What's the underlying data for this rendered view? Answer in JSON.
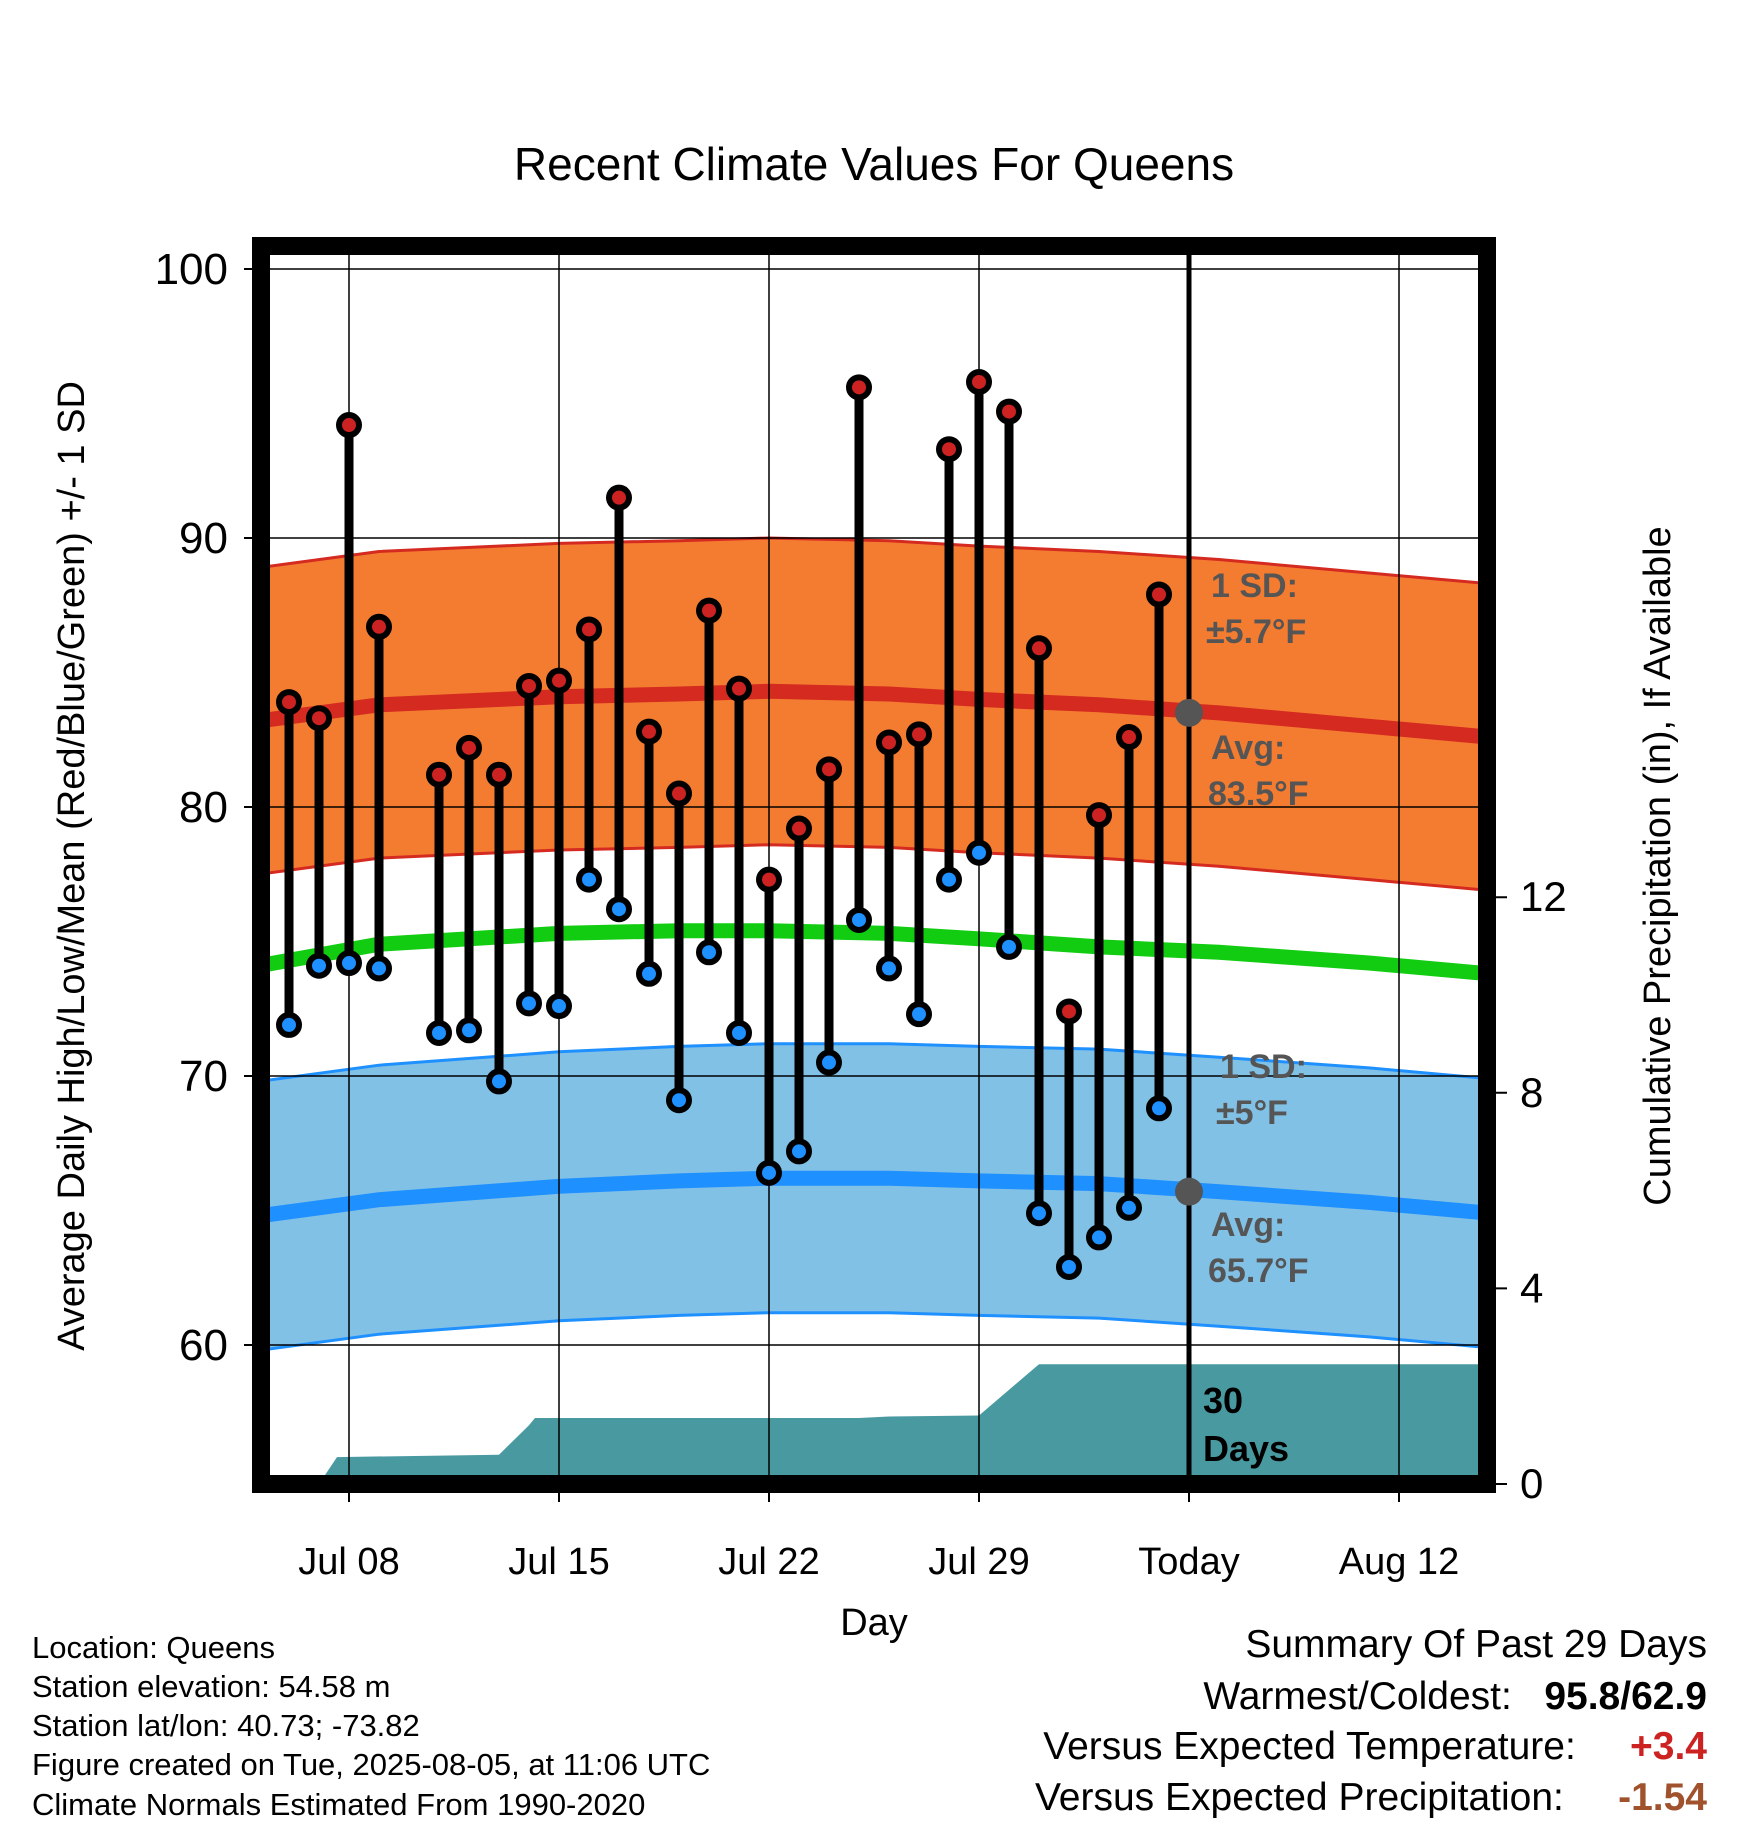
{
  "chart_data": {
    "type": "line",
    "title": "Recent Climate Values For Queens",
    "xlabel": "Day",
    "ylabel": "Average Daily High/Low/Mean (Red/Blue/Green) +/- 1 SD",
    "y2label": "Cumulative Precipitation (in), If Available",
    "ylim": [
      55,
      101
    ],
    "y2lim": [
      0,
      26
    ],
    "yticks": [
      "60",
      "70",
      "80",
      "90",
      "100"
    ],
    "y2ticks": [
      "0",
      "4",
      "8",
      "12"
    ],
    "xticks": [
      "Jul 08",
      "Jul 15",
      "Jul 22",
      "Jul 29",
      "Today",
      "Aug 12"
    ],
    "xtick_days": [
      8,
      15,
      22,
      29,
      36,
      43
    ],
    "xlim": [
      4.7,
      45.8
    ],
    "grid": true,
    "days": [
      6,
      7,
      8,
      9,
      11,
      12,
      13,
      14,
      15,
      16,
      17,
      18,
      19,
      20,
      21,
      22,
      23,
      24,
      25,
      26,
      27,
      28,
      29,
      30,
      31,
      32,
      33,
      34,
      35
    ],
    "highs": [
      83.9,
      83.3,
      94.2,
      86.7,
      81.2,
      82.2,
      81.2,
      84.5,
      84.7,
      86.6,
      91.5,
      82.8,
      80.5,
      87.3,
      84.4,
      77.3,
      79.2,
      81.4,
      95.6,
      82.4,
      82.7,
      93.3,
      95.8,
      94.7,
      85.9,
      72.4,
      79.7,
      82.6,
      87.9
    ],
    "lows": [
      71.9,
      74.1,
      74.2,
      74.0,
      71.6,
      71.7,
      69.8,
      72.7,
      72.6,
      77.3,
      76.2,
      73.8,
      69.1,
      74.6,
      71.6,
      66.4,
      67.2,
      70.5,
      75.8,
      74.0,
      72.3,
      77.3,
      78.3,
      74.8,
      64.9,
      62.9,
      64.0,
      65.1,
      68.8
    ],
    "normal_days": [
      5,
      9,
      15,
      19,
      22,
      26,
      29,
      33,
      37,
      42,
      46
    ],
    "normal_high": [
      83.2,
      83.8,
      84.1,
      84.2,
      84.3,
      84.2,
      84.0,
      83.8,
      83.5,
      83.0,
      82.6
    ],
    "normal_high_sd": 5.7,
    "normal_mean": [
      74.1,
      74.9,
      75.3,
      75.4,
      75.4,
      75.3,
      75.1,
      74.8,
      74.6,
      74.2,
      73.8
    ],
    "normal_low": [
      64.8,
      65.4,
      65.9,
      66.1,
      66.2,
      66.2,
      66.1,
      66.0,
      65.7,
      65.3,
      64.9
    ],
    "normal_low_sd": 5,
    "precip": [
      {
        "day": 4.7,
        "value": 0
      },
      {
        "day": 7.0,
        "value": 0
      },
      {
        "day": 7.6,
        "value": 0.55
      },
      {
        "day": 13.0,
        "value": 0.6
      },
      {
        "day": 14.0,
        "value": 1.2
      },
      {
        "day": 14.2,
        "value": 1.35
      },
      {
        "day": 25.0,
        "value": 1.35
      },
      {
        "day": 26.0,
        "value": 1.38
      },
      {
        "day": 29.0,
        "value": 1.4
      },
      {
        "day": 31.0,
        "value": 2.45
      },
      {
        "day": 45.8,
        "value": 2.45
      }
    ],
    "today_day": 36,
    "annotations": {
      "high_sd_line1": "1 SD:",
      "high_sd_line2": "±5.7°F",
      "high_avg_line1": "Avg:",
      "high_avg_line2": "83.5°F",
      "low_sd_line1": "1 SD:",
      "low_sd_line2": "±5°F",
      "low_avg_line1": "Avg:",
      "low_avg_line2": "65.7°F",
      "precip_line1": "30",
      "precip_line2": "Days"
    },
    "colors": {
      "high_band": "#F47C30",
      "high_line": "#D42A20",
      "high_dot": "#CC2222",
      "mean_line": "#11CC11",
      "low_band": "#82C1E6",
      "low_line": "#1E90FF",
      "low_dot": "#1E90FF",
      "precip": "#4999A1",
      "annotation": "#555555",
      "avg_marker": "#555555"
    }
  },
  "info": {
    "location": "Location: Queens",
    "elevation": "Station elevation: 54.58 m",
    "latlon": "Station lat/lon: 40.73; -73.82",
    "created": "Figure created on Tue, 2025-08-05, at 11:06 UTC",
    "normals": "Climate Normals Estimated From 1990-2020"
  },
  "summary": {
    "title": "Summary Of Past 29 Days",
    "warm_cold_label": "Warmest/Coldest:",
    "warmest": "95.8",
    "separator": "/",
    "coldest": "62.9",
    "temp_label": "Versus Expected Temperature:",
    "temp_value": "+3.4",
    "temp_color": "#CC2222",
    "precip_label": "Versus Expected Precipitation:",
    "precip_value": "-1.54",
    "precip_color": "#A0522D"
  }
}
